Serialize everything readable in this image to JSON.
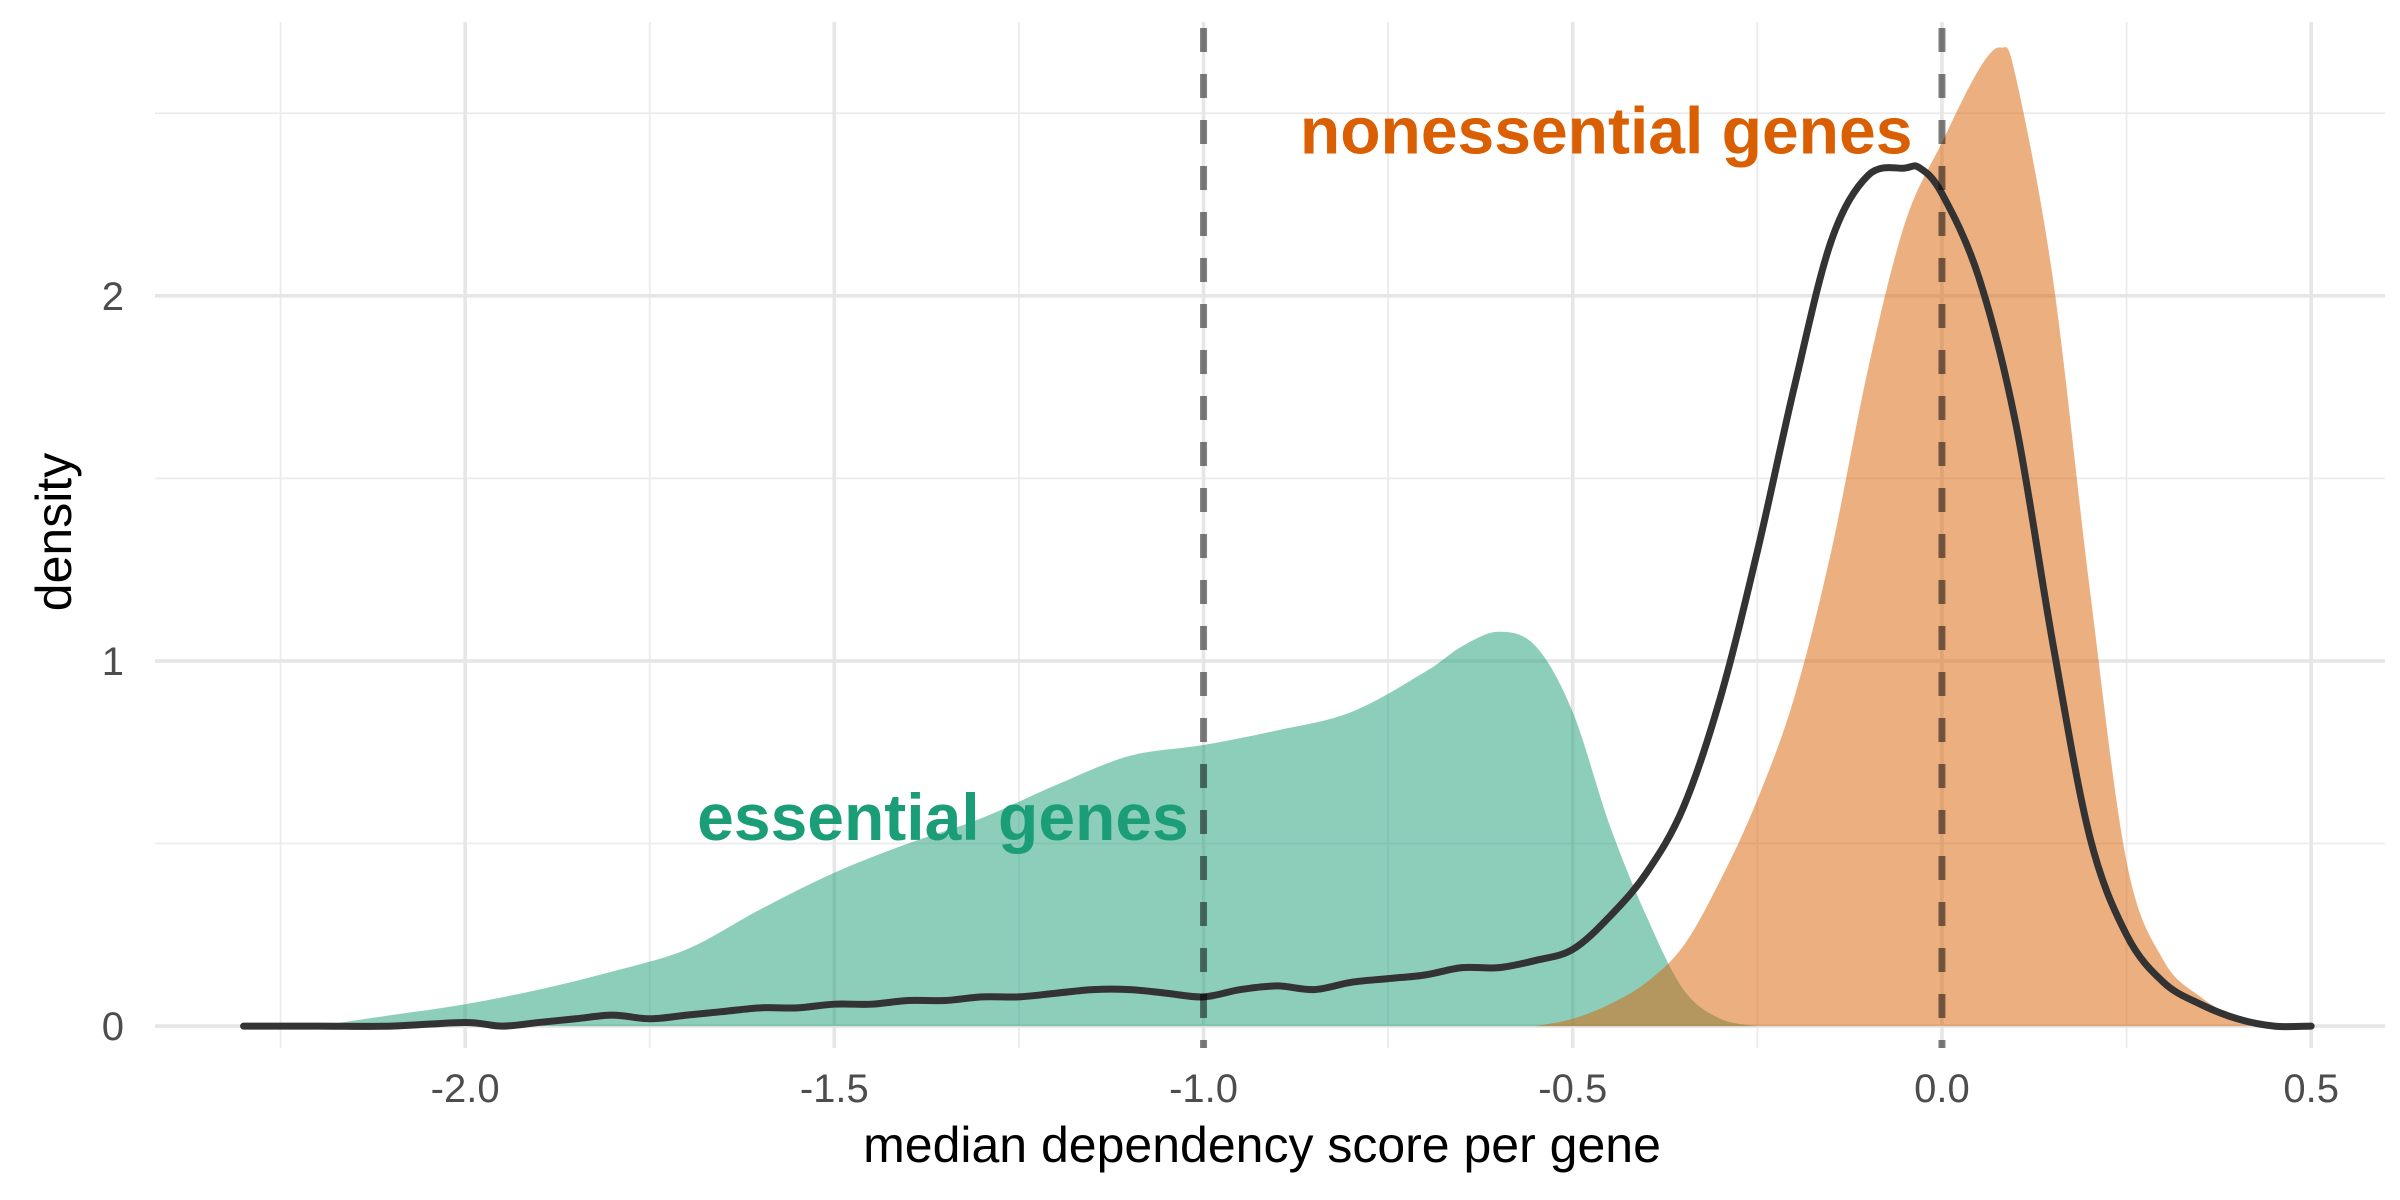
{
  "chart_data": {
    "type": "area",
    "title": "",
    "xlabel": "median dependency score per gene",
    "ylabel": "density",
    "xlim": [
      -2.42,
      0.6
    ],
    "ylim": [
      -0.06,
      2.75
    ],
    "x_ticks": [
      -2.0,
      -1.5,
      -1.0,
      -0.5,
      0.0,
      0.5
    ],
    "x_tick_labels": [
      "-2.0",
      "-1.5",
      "-1.0",
      "-0.5",
      "0.0",
      "0.5"
    ],
    "y_ticks": [
      0,
      1,
      2
    ],
    "y_tick_labels": [
      "0",
      "1",
      "2"
    ],
    "grid": true,
    "legend": "none",
    "series": [
      {
        "color": "#1b9e77",
        "fill_opacity": 0.5,
        "style": "filled-density",
        "x": [
          -2.2,
          -2.1,
          -2.0,
          -1.9,
          -1.8,
          -1.7,
          -1.6,
          -1.5,
          -1.4,
          -1.3,
          -1.2,
          -1.1,
          -1.0,
          -0.9,
          -0.8,
          -0.7,
          -0.65,
          -0.6,
          -0.55,
          -0.5,
          -0.45,
          -0.4,
          -0.35,
          -0.3,
          -0.25
        ],
        "y": [
          0.0,
          0.03,
          0.06,
          0.1,
          0.15,
          0.21,
          0.32,
          0.42,
          0.5,
          0.57,
          0.66,
          0.74,
          0.77,
          0.81,
          0.86,
          0.97,
          1.04,
          1.08,
          1.04,
          0.86,
          0.55,
          0.3,
          0.1,
          0.02,
          0.0
        ]
      },
      {
        "color": "#d95f02",
        "fill_opacity": 0.5,
        "style": "filled-density",
        "x": [
          -0.55,
          -0.5,
          -0.45,
          -0.4,
          -0.35,
          -0.3,
          -0.25,
          -0.2,
          -0.15,
          -0.1,
          -0.05,
          0.0,
          0.05,
          0.08,
          0.1,
          0.15,
          0.2,
          0.25,
          0.3,
          0.35,
          0.4,
          0.42
        ],
        "y": [
          0.0,
          0.02,
          0.06,
          0.12,
          0.22,
          0.4,
          0.62,
          0.9,
          1.3,
          1.8,
          2.2,
          2.42,
          2.62,
          2.68,
          2.6,
          2.05,
          1.2,
          0.45,
          0.18,
          0.08,
          0.02,
          0.0
        ]
      },
      {
        "color": "#333333",
        "style": "line",
        "x": [
          -2.3,
          -2.2,
          -2.1,
          -2.0,
          -1.95,
          -1.9,
          -1.85,
          -1.8,
          -1.75,
          -1.7,
          -1.65,
          -1.6,
          -1.55,
          -1.5,
          -1.45,
          -1.4,
          -1.35,
          -1.3,
          -1.25,
          -1.2,
          -1.15,
          -1.1,
          -1.05,
          -1.0,
          -0.95,
          -0.9,
          -0.85,
          -0.8,
          -0.75,
          -0.7,
          -0.65,
          -0.6,
          -0.55,
          -0.5,
          -0.45,
          -0.4,
          -0.35,
          -0.3,
          -0.25,
          -0.2,
          -0.15,
          -0.1,
          -0.05,
          -0.03,
          0.0,
          0.05,
          0.1,
          0.15,
          0.2,
          0.25,
          0.3,
          0.35,
          0.4,
          0.45,
          0.5
        ],
        "y": [
          0.0,
          0.0,
          0.0,
          0.01,
          0.0,
          0.01,
          0.02,
          0.03,
          0.02,
          0.03,
          0.04,
          0.05,
          0.05,
          0.06,
          0.06,
          0.07,
          0.07,
          0.08,
          0.08,
          0.09,
          0.1,
          0.1,
          0.09,
          0.08,
          0.1,
          0.11,
          0.1,
          0.12,
          0.13,
          0.14,
          0.16,
          0.16,
          0.18,
          0.21,
          0.3,
          0.42,
          0.6,
          0.9,
          1.3,
          1.75,
          2.15,
          2.33,
          2.35,
          2.35,
          2.28,
          2.05,
          1.65,
          1.05,
          0.52,
          0.25,
          0.12,
          0.06,
          0.02,
          0.0,
          0.0
        ]
      }
    ],
    "reference_lines": [
      {
        "axis": "x",
        "value": -1.0,
        "style": "dashed",
        "color": "#808080"
      },
      {
        "axis": "x",
        "value": 0.0,
        "style": "dashed",
        "color": "#808080"
      }
    ],
    "annotations": [
      {
        "text": "essential genes",
        "x": -1.02,
        "y": 0.57,
        "anchor": "end",
        "color": "#1b9e77"
      },
      {
        "text": "nonessential genes",
        "x": -0.04,
        "y": 2.45,
        "anchor": "end",
        "color": "#d95f02"
      }
    ]
  }
}
